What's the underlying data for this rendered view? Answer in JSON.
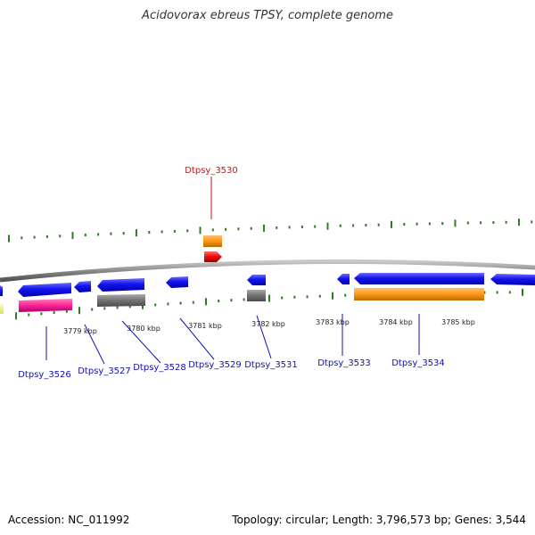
{
  "title": "Acidovorax ebreus TPSY, complete genome",
  "footer": {
    "accession": "Accession: NC_011992",
    "summary": "Topology: circular; Length: 3,796,573 bp; Genes: 3,544"
  },
  "colors": {
    "backbone": "#8a8a8a",
    "tick": "#2e7d1e",
    "forward_gene": "#1010ee",
    "highlight_gene": "#ee1010",
    "gene_label": "#1010b0",
    "highlight_label": "#cc1010",
    "orange_feature": "#ff9a1a",
    "pink_feature": "#ff2a9a",
    "gray_feature": "#777777",
    "yellow_feature": "#ffff88"
  },
  "scale_labels": [
    "3779 kbp",
    "3780 kbp",
    "3781 kbp",
    "3782 kbp",
    "3783 kbp",
    "3784 kbp",
    "3785 kbp"
  ],
  "gene_labels": [
    "Dtpsy_3526",
    "Dtpsy_3527",
    "Dtpsy_3528",
    "Dtpsy_3529",
    "Dtpsy_3531",
    "Dtpsy_3533",
    "Dtpsy_3534"
  ],
  "highlight_label": "Dtpsy_3530"
}
